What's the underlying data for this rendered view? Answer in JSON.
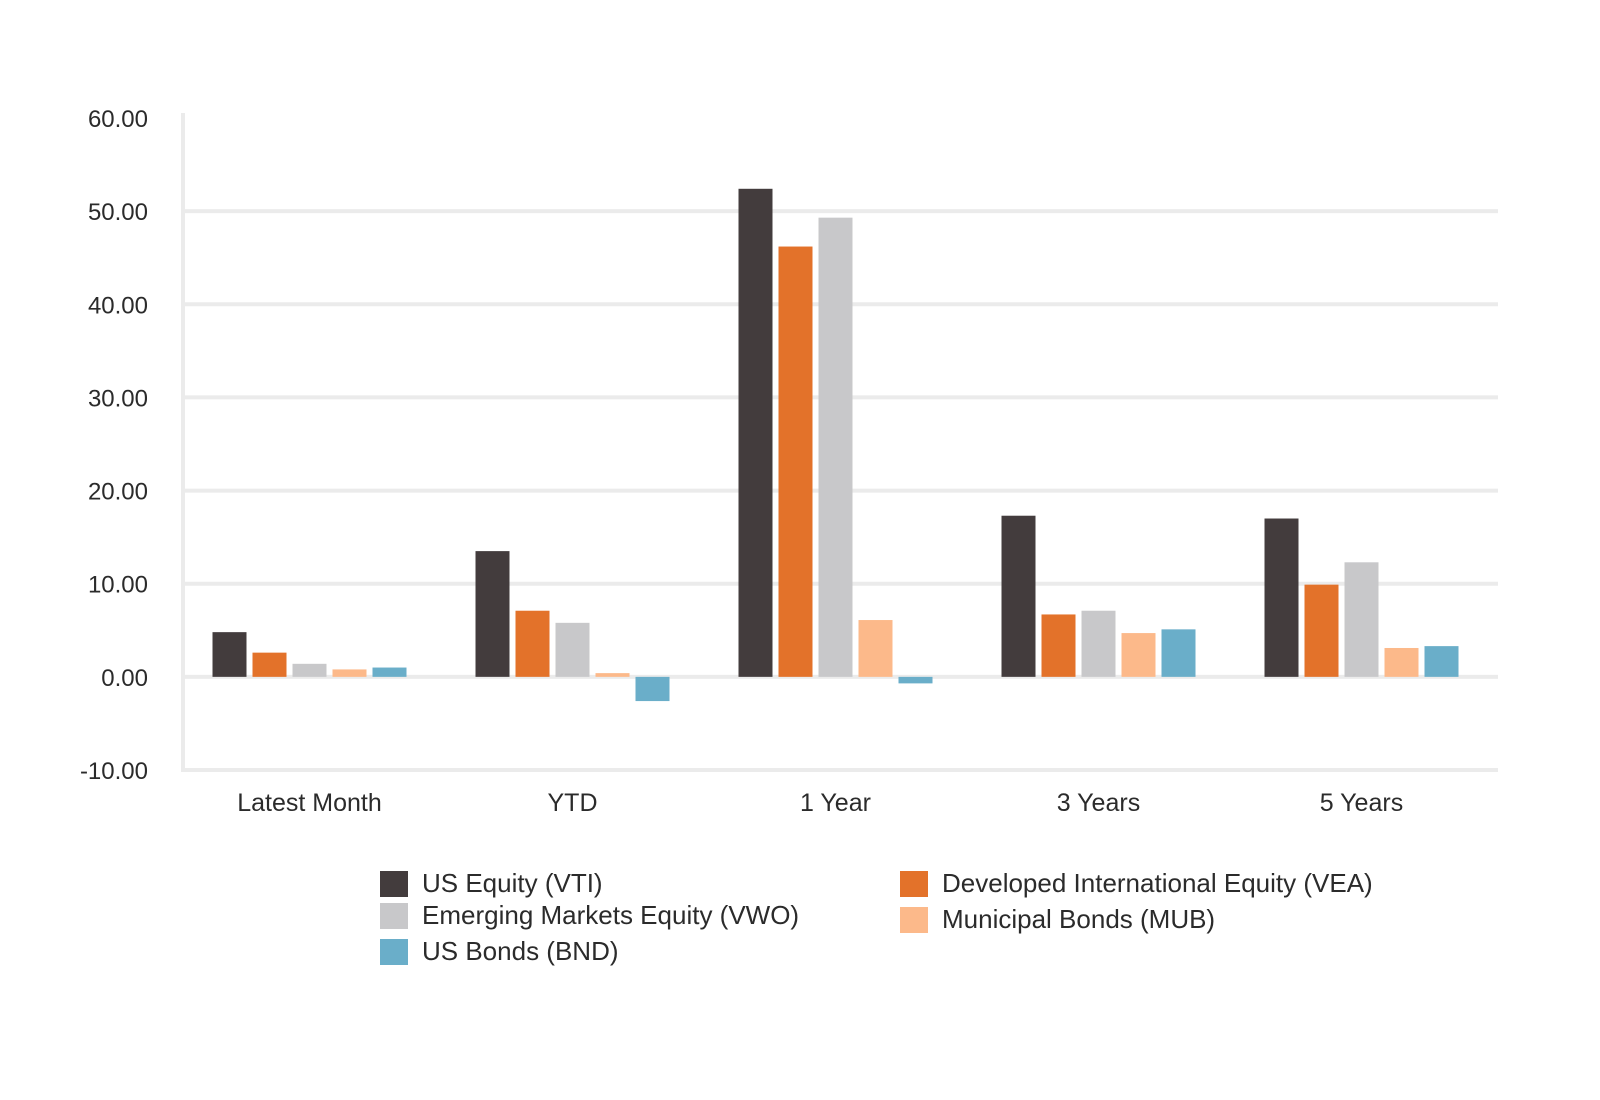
{
  "chart_data": {
    "type": "bar",
    "title": "",
    "xlabel": "",
    "ylabel": "",
    "ylim": [
      -10,
      60
    ],
    "yticks": [
      "60.00",
      "50.00",
      "40.00",
      "30.00",
      "20.00",
      "10.00",
      "0.00",
      "-10.00"
    ],
    "ytick_values": [
      60,
      50,
      40,
      30,
      20,
      10,
      0,
      -10
    ],
    "grid": true,
    "legend_position": "bottom",
    "categories": [
      "Latest Month",
      "YTD",
      "1 Year",
      "3 Years",
      "5 Years"
    ],
    "series": [
      {
        "name": "US Equity (VTI)",
        "color": "#433c3d",
        "values": [
          4.8,
          13.5,
          52.4,
          17.3,
          17.0
        ]
      },
      {
        "name": "Developed International Equity (VEA)",
        "color": "#e3722a",
        "values": [
          2.6,
          7.1,
          46.2,
          6.7,
          9.9
        ]
      },
      {
        "name": "Emerging Markets Equity (VWO)",
        "color": "#c8c8ca",
        "values": [
          1.4,
          5.8,
          49.3,
          7.1,
          12.3
        ]
      },
      {
        "name": "Municipal Bonds (MUB)",
        "color": "#fcb98a",
        "values": [
          0.8,
          0.4,
          6.1,
          4.7,
          3.1
        ]
      },
      {
        "name": "US Bonds (BND)",
        "color": "#6aaec9",
        "values": [
          1.0,
          -2.6,
          -0.7,
          5.1,
          3.3
        ]
      }
    ]
  }
}
